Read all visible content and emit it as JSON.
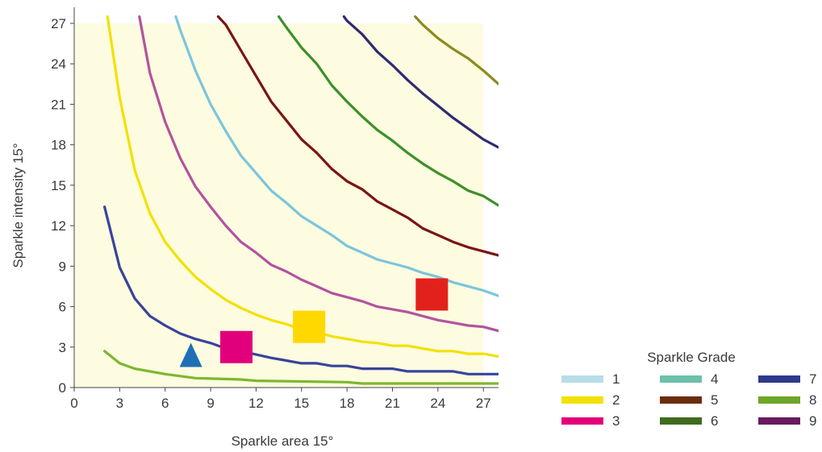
{
  "chart_data": {
    "type": "line",
    "title": "",
    "xlabel": "Sparkle area 15°",
    "ylabel": "Sparkle intensity 15°",
    "xlim": [
      0,
      28
    ],
    "ylim": [
      0,
      27
    ],
    "x_ticks": [
      "0",
      "3",
      "6",
      "9",
      "12",
      "15",
      "18",
      "21",
      "24",
      "27"
    ],
    "y_ticks": [
      "0",
      "3",
      "6",
      "9",
      "12",
      "15",
      "18",
      "21",
      "24",
      "27"
    ],
    "grid": false,
    "highlight_region": {
      "x": [
        0,
        27
      ],
      "y": [
        0,
        27
      ],
      "color": "#fdfbe0"
    },
    "legend": {
      "title": "Sparkle Grade",
      "placement": "bottom-right",
      "items": [
        {
          "label": "1",
          "color": "#b8dde6"
        },
        {
          "label": "2",
          "color": "#f2e100"
        },
        {
          "label": "3",
          "color": "#e2007a"
        },
        {
          "label": "4",
          "color": "#6cc0ac"
        },
        {
          "label": "5",
          "color": "#6b2d0e"
        },
        {
          "label": "6",
          "color": "#3f6b1e"
        },
        {
          "label": "7",
          "color": "#2e3a8c"
        },
        {
          "label": "8",
          "color": "#6fa52a"
        },
        {
          "label": "9",
          "color": "#6a1a5e"
        }
      ]
    },
    "series": [
      {
        "color": "#7cb82f",
        "points": [
          [
            2,
            2.7
          ],
          [
            3,
            1.8
          ],
          [
            4,
            1.4
          ],
          [
            6,
            1.0
          ],
          [
            8,
            0.7
          ],
          [
            11,
            0.6
          ],
          [
            12,
            0.5
          ],
          [
            18,
            0.4
          ],
          [
            19,
            0.3
          ],
          [
            28,
            0.3
          ]
        ]
      },
      {
        "color": "#38439b",
        "points": [
          [
            2,
            13.4
          ],
          [
            3,
            8.9
          ],
          [
            4,
            6.6
          ],
          [
            5,
            5.3
          ],
          [
            6,
            4.6
          ],
          [
            7,
            4.0
          ],
          [
            8,
            3.6
          ],
          [
            9,
            3.3
          ],
          [
            10,
            2.9
          ],
          [
            11,
            2.7
          ],
          [
            13,
            2.2
          ],
          [
            14,
            2.0
          ],
          [
            15,
            1.8
          ],
          [
            16,
            1.8
          ],
          [
            17,
            1.6
          ],
          [
            18,
            1.6
          ],
          [
            19,
            1.4
          ],
          [
            21,
            1.4
          ],
          [
            22,
            1.2
          ],
          [
            25,
            1.2
          ],
          [
            26,
            1.0
          ],
          [
            28,
            1.0
          ]
        ]
      },
      {
        "color": "#f2e100",
        "points": [
          [
            2.2,
            27.5
          ],
          [
            3,
            21.5
          ],
          [
            4,
            16.1
          ],
          [
            5,
            12.9
          ],
          [
            6,
            10.8
          ],
          [
            7,
            9.4
          ],
          [
            8,
            8.2
          ],
          [
            9,
            7.3
          ],
          [
            10,
            6.5
          ],
          [
            11,
            5.9
          ],
          [
            12,
            5.4
          ],
          [
            13,
            5.0
          ],
          [
            14,
            4.7
          ],
          [
            15,
            4.3
          ],
          [
            16,
            4.1
          ],
          [
            17,
            3.8
          ],
          [
            18,
            3.6
          ],
          [
            19,
            3.4
          ],
          [
            20,
            3.3
          ],
          [
            21,
            3.1
          ],
          [
            22,
            3.1
          ],
          [
            23,
            2.9
          ],
          [
            24,
            2.7
          ],
          [
            25,
            2.7
          ],
          [
            26,
            2.5
          ],
          [
            27,
            2.5
          ],
          [
            28,
            2.3
          ]
        ]
      },
      {
        "color": "#b2539f",
        "points": [
          [
            4.3,
            27.5
          ],
          [
            5,
            23.3
          ],
          [
            6,
            19.7
          ],
          [
            7,
            17.0
          ],
          [
            8,
            14.9
          ],
          [
            9,
            13.4
          ],
          [
            10,
            12.0
          ],
          [
            11,
            10.8
          ],
          [
            12,
            10.0
          ],
          [
            13,
            9.1
          ],
          [
            14,
            8.6
          ],
          [
            15,
            8.0
          ],
          [
            16,
            7.5
          ],
          [
            17,
            7.0
          ],
          [
            18,
            6.7
          ],
          [
            19,
            6.4
          ],
          [
            20,
            6.0
          ],
          [
            21,
            5.8
          ],
          [
            22,
            5.6
          ],
          [
            23,
            5.3
          ],
          [
            24,
            5.0
          ],
          [
            25,
            4.8
          ],
          [
            26,
            4.6
          ],
          [
            27,
            4.5
          ],
          [
            28,
            4.2
          ]
        ]
      },
      {
        "color": "#7cc5dc",
        "points": [
          [
            6.7,
            27.5
          ],
          [
            7,
            26.5
          ],
          [
            8,
            23.5
          ],
          [
            9,
            21.0
          ],
          [
            10,
            19.0
          ],
          [
            11,
            17.2
          ],
          [
            12,
            15.9
          ],
          [
            13,
            14.6
          ],
          [
            14,
            13.7
          ],
          [
            15,
            12.7
          ],
          [
            16,
            12.0
          ],
          [
            17,
            11.3
          ],
          [
            18,
            10.5
          ],
          [
            19,
            10.0
          ],
          [
            20,
            9.5
          ],
          [
            21,
            9.2
          ],
          [
            22,
            8.9
          ],
          [
            23,
            8.5
          ],
          [
            24,
            8.2
          ],
          [
            25,
            7.8
          ],
          [
            26,
            7.5
          ],
          [
            27,
            7.2
          ],
          [
            28,
            6.8
          ]
        ]
      },
      {
        "color": "#7a1414",
        "points": [
          [
            9.5,
            27.5
          ],
          [
            10,
            26.9
          ],
          [
            11,
            25.0
          ],
          [
            12,
            23.1
          ],
          [
            13,
            21.2
          ],
          [
            14,
            19.8
          ],
          [
            15,
            18.4
          ],
          [
            16,
            17.4
          ],
          [
            17,
            16.2
          ],
          [
            18,
            15.3
          ],
          [
            19,
            14.7
          ],
          [
            20,
            13.8
          ],
          [
            21,
            13.2
          ],
          [
            22,
            12.6
          ],
          [
            23,
            11.8
          ],
          [
            24,
            11.3
          ],
          [
            25,
            10.8
          ],
          [
            26,
            10.4
          ],
          [
            27,
            10.1
          ],
          [
            28,
            9.8
          ]
        ]
      },
      {
        "color": "#3f8f2a",
        "points": [
          [
            13.5,
            27.5
          ],
          [
            14,
            26.7
          ],
          [
            15,
            25.2
          ],
          [
            16,
            24.0
          ],
          [
            17,
            22.4
          ],
          [
            18,
            21.2
          ],
          [
            19,
            20.1
          ],
          [
            20,
            19.1
          ],
          [
            21,
            18.3
          ],
          [
            22,
            17.4
          ],
          [
            23,
            16.6
          ],
          [
            24,
            15.9
          ],
          [
            25,
            15.3
          ],
          [
            26,
            14.6
          ],
          [
            27,
            14.2
          ],
          [
            28,
            13.5
          ]
        ]
      },
      {
        "color": "#2e2a73",
        "points": [
          [
            17.8,
            27.5
          ],
          [
            18,
            27.2
          ],
          [
            19,
            26.2
          ],
          [
            20,
            24.9
          ],
          [
            21,
            23.9
          ],
          [
            22,
            22.8
          ],
          [
            23,
            21.8
          ],
          [
            24,
            20.9
          ],
          [
            25,
            20.0
          ],
          [
            26,
            19.2
          ],
          [
            27,
            18.4
          ],
          [
            28,
            17.8
          ]
        ]
      },
      {
        "color": "#8c8a1c",
        "points": [
          [
            22.5,
            27.5
          ],
          [
            23,
            26.9
          ],
          [
            24,
            25.9
          ],
          [
            25,
            25.1
          ],
          [
            26,
            24.4
          ],
          [
            27,
            23.5
          ],
          [
            28,
            22.5
          ]
        ]
      }
    ],
    "markers": [
      {
        "shape": "triangle",
        "x": 7.7,
        "y": 2.3,
        "color": "#1f6fb6"
      },
      {
        "shape": "square",
        "x": 10.7,
        "y": 3.0,
        "color": "#e2007a"
      },
      {
        "shape": "square",
        "x": 15.5,
        "y": 4.5,
        "color": "#ffd800"
      },
      {
        "shape": "square",
        "x": 23.6,
        "y": 6.9,
        "color": "#e3211c"
      }
    ]
  }
}
